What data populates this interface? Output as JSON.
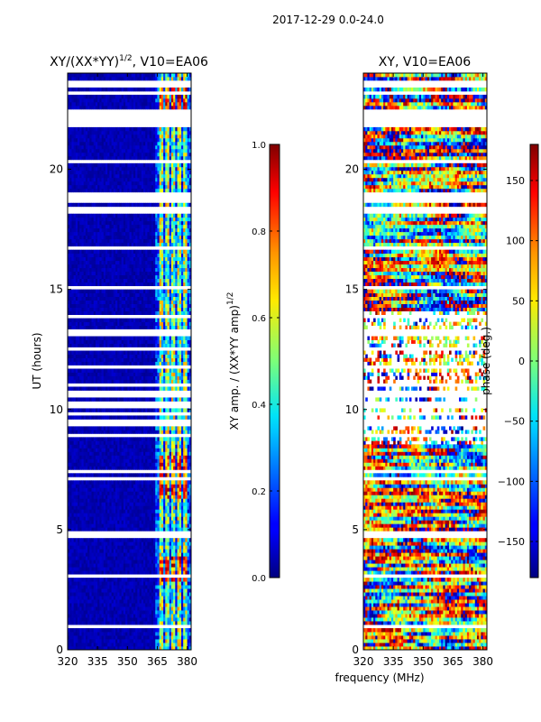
{
  "figure_title": "2017-12-29 0.0-24.0",
  "shared_xlabel": "frequency (MHz)",
  "chart_data": [
    {
      "type": "heatmap",
      "title_main": "XY/(XX*YY)",
      "title_sup": "1/2",
      "title_rest": ", V10=EA06",
      "ylabel": "UT (hours)",
      "xlabel": "frequency (MHz)",
      "xlim": [
        320,
        382
      ],
      "ylim": [
        0,
        24
      ],
      "xticks": [
        320,
        335,
        350,
        365,
        380
      ],
      "yticks": [
        0,
        5,
        10,
        15,
        20
      ],
      "colormap": "jet",
      "colorbar": {
        "label_main": "XY amp. / (XX*YY amp)",
        "label_sup": "1/2",
        "range": [
          0.0,
          1.0
        ],
        "ticks": [
          "0.0",
          "0.2",
          "0.4",
          "0.6",
          "0.8",
          "1.0"
        ],
        "tick_values": [
          0.0,
          0.2,
          0.4,
          0.6,
          0.8,
          1.0
        ]
      }
    },
    {
      "type": "heatmap",
      "title": "XY, V10=EA06",
      "ylabel": "",
      "xlabel": "frequency (MHz)",
      "xlim": [
        320,
        382
      ],
      "ylim": [
        0,
        24
      ],
      "xticks": [
        320,
        335,
        350,
        365,
        380
      ],
      "yticks": [
        0,
        5,
        10,
        15,
        20
      ],
      "colormap": "jet",
      "colorbar": {
        "label": "phase (deg.)",
        "range": [
          -180,
          180
        ],
        "ticks": [
          "−150",
          "−100",
          "−50",
          "0",
          "50",
          "100",
          "150"
        ],
        "tick_values": [
          -150,
          -100,
          -50,
          0,
          50,
          100,
          150
        ]
      }
    }
  ]
}
